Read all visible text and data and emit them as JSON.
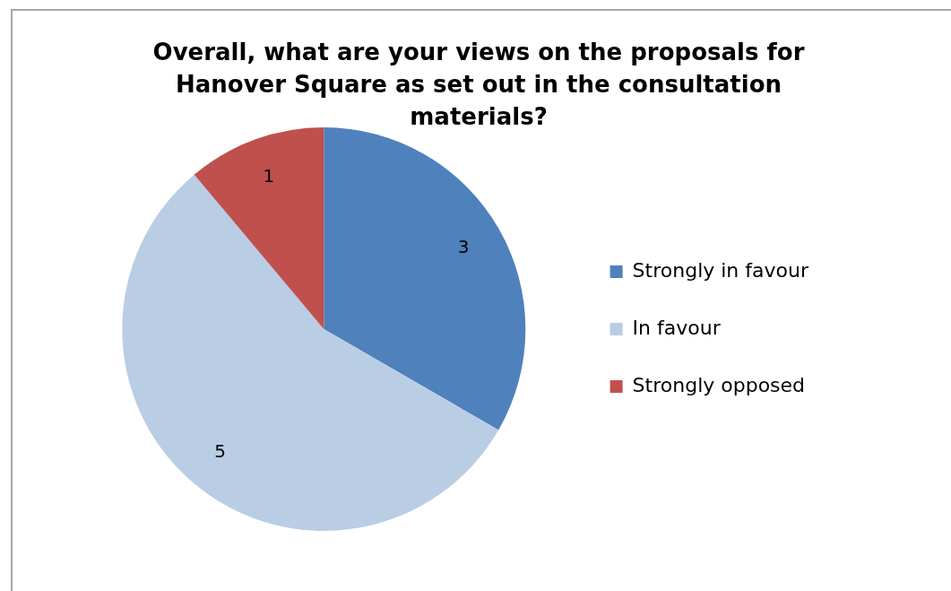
{
  "chart_data": {
    "type": "pie",
    "title": "Overall, what are your views on the proposals for Hanover Square as set out in the consultation materials?",
    "categories": [
      "Strongly in favour",
      "In favour",
      "Strongly opposed"
    ],
    "values": [
      3,
      5,
      1
    ],
    "colors": [
      "#4f81bd",
      "#b9cde5",
      "#c0504d"
    ],
    "data_labels": true,
    "legend": "right"
  }
}
